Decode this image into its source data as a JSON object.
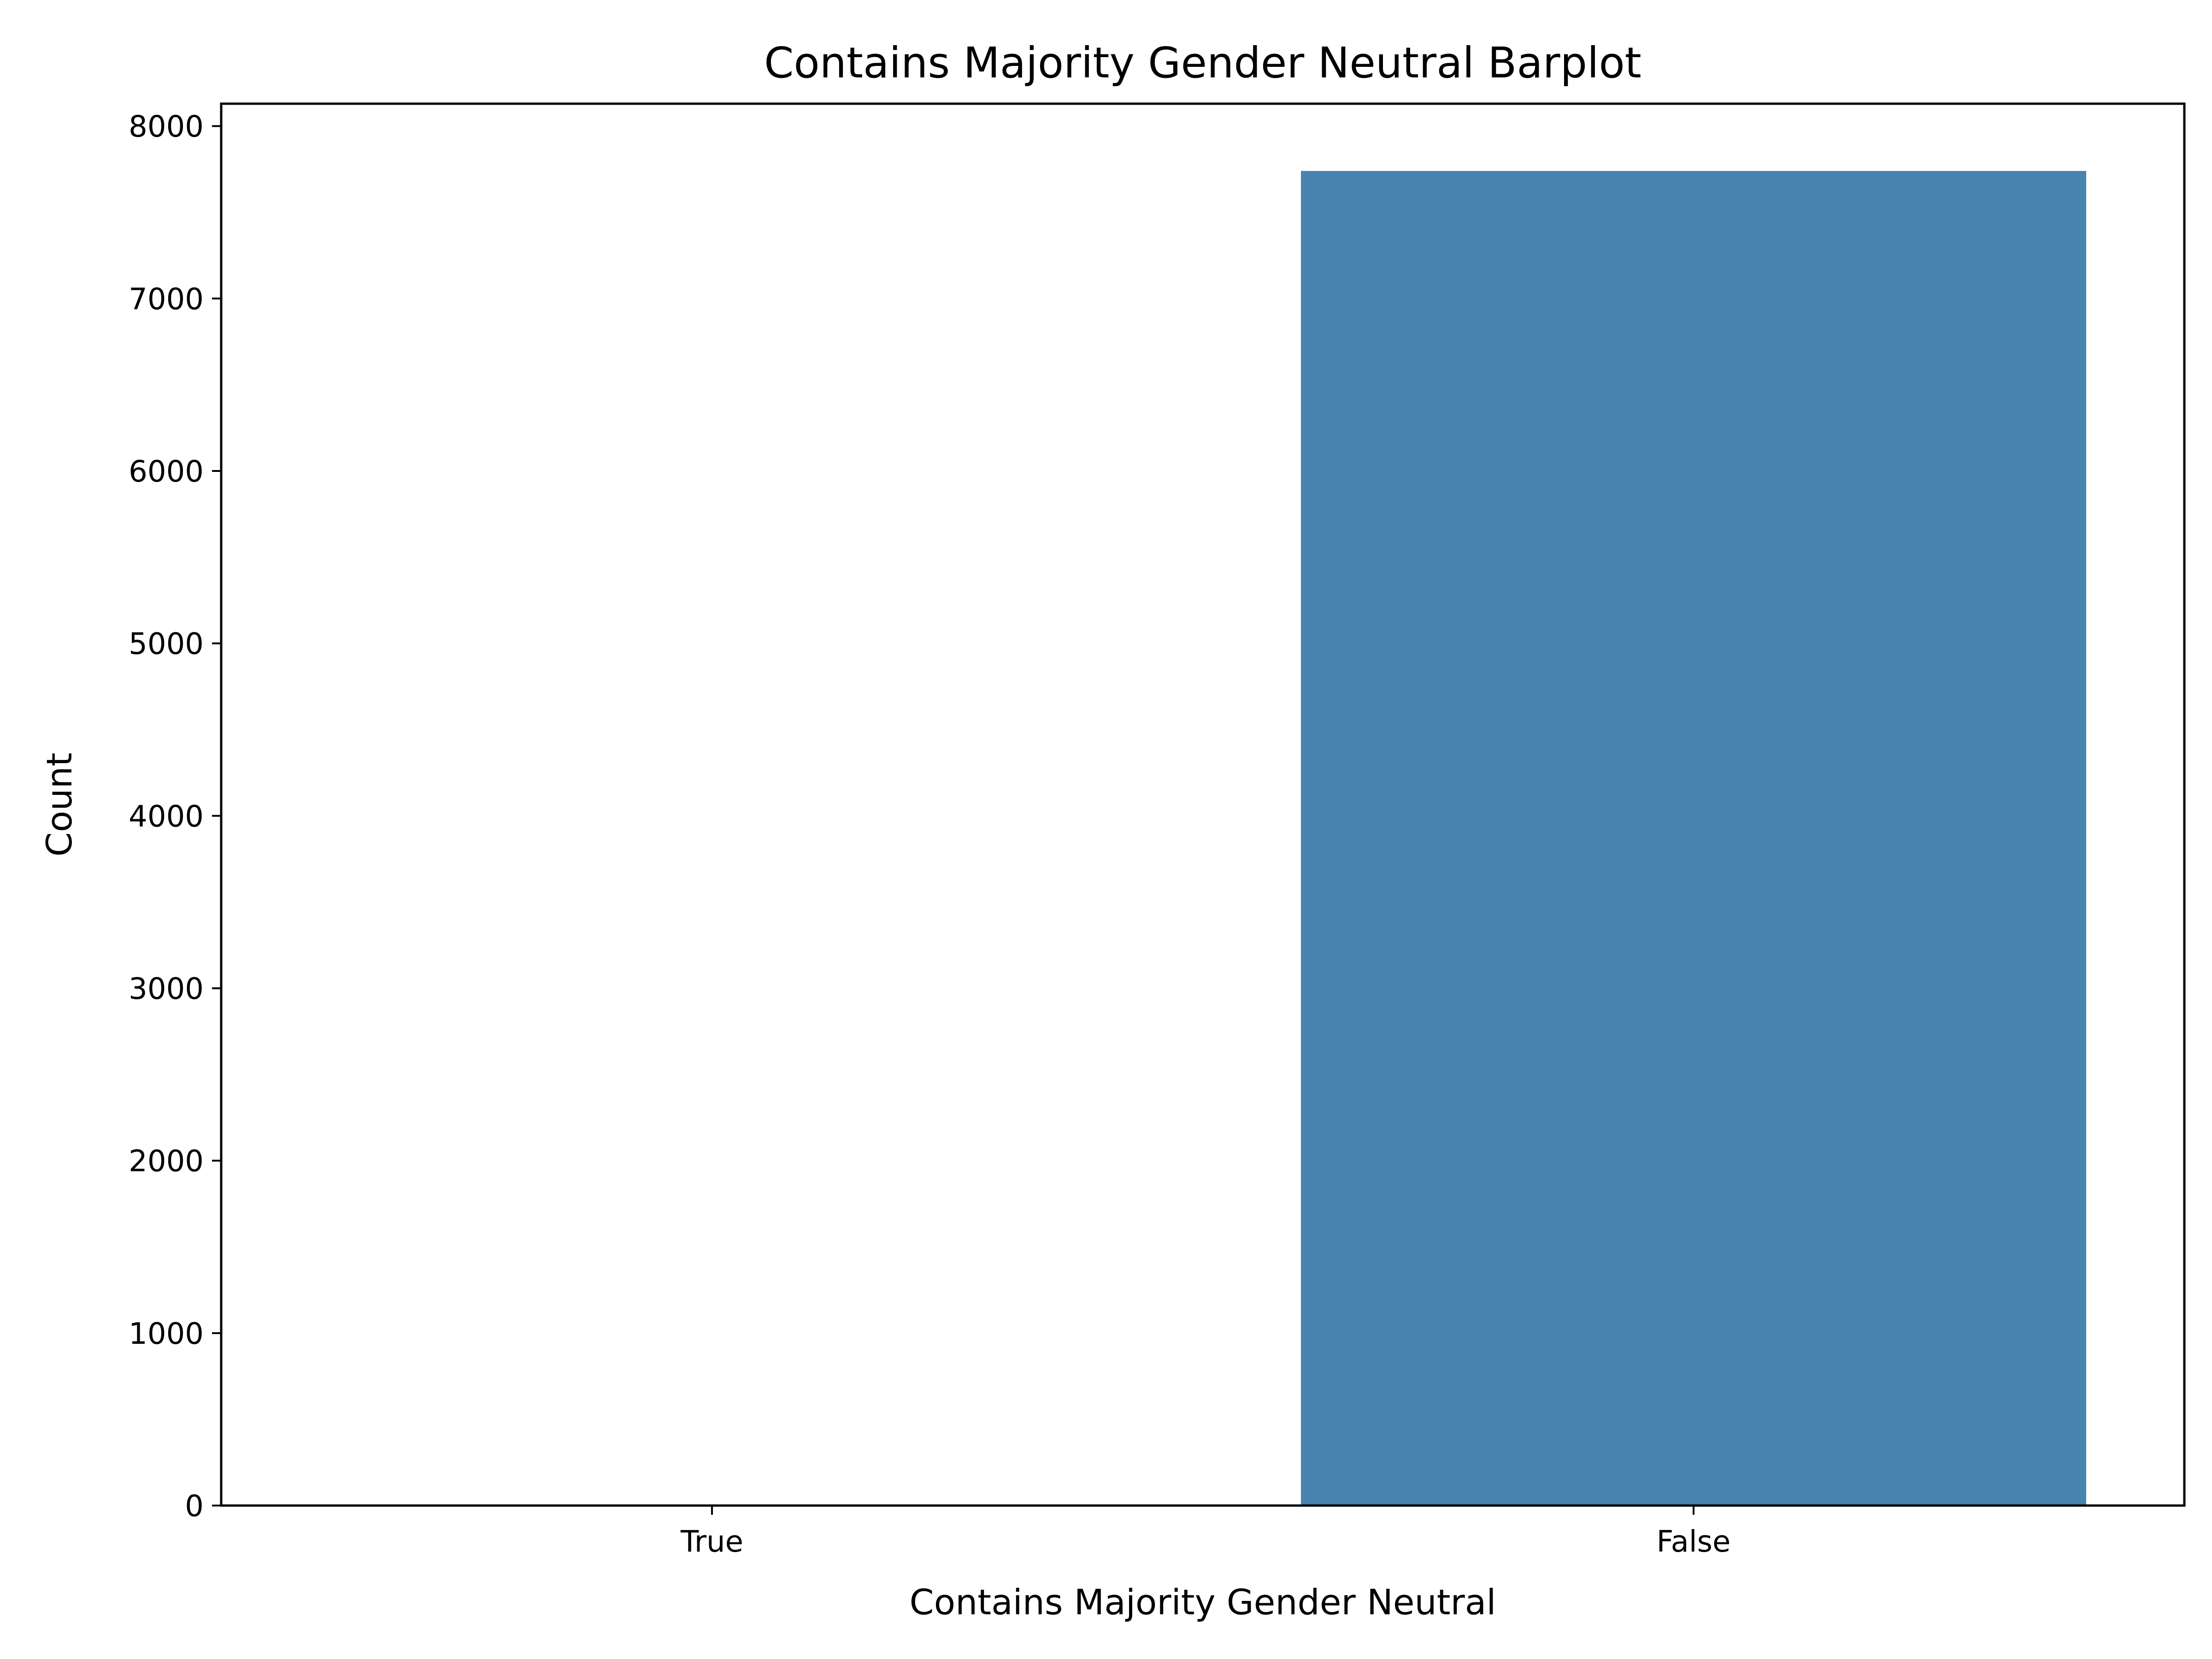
{
  "chart_data": {
    "type": "bar",
    "title": "Contains Majority Gender Neutral Barplot",
    "xlabel": "Contains Majority Gender Neutral",
    "ylabel": "Count",
    "categories": [
      "True",
      "False"
    ],
    "values": [
      0,
      7740
    ],
    "ylim": [
      0,
      8130
    ],
    "yticks": [
      0,
      1000,
      2000,
      3000,
      4000,
      5000,
      6000,
      7000,
      8000
    ],
    "bar_color": "#4883b0",
    "grid": false,
    "legend": "none"
  }
}
